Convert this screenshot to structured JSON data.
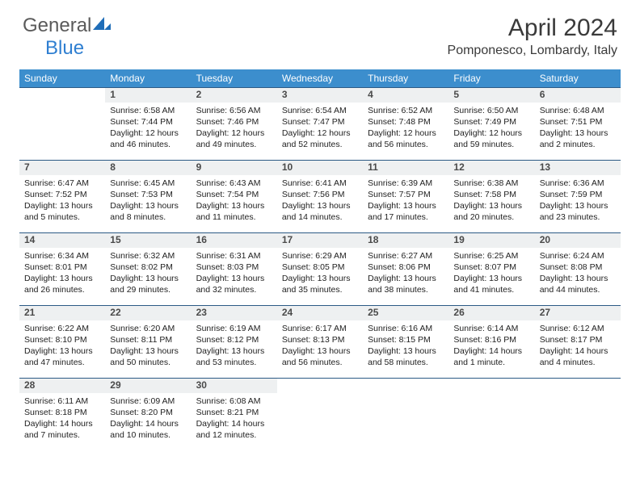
{
  "brand": {
    "part1": "General",
    "part2": "Blue"
  },
  "title": "April 2024",
  "location": "Pomponesco, Lombardy, Italy",
  "colors": {
    "header_bg": "#3c8ecd",
    "header_rule": "#2c5a85",
    "day_bg": "#eef0f1",
    "brand_blue": "#2f7fd1",
    "text": "#212121"
  },
  "weekdays": [
    "Sunday",
    "Monday",
    "Tuesday",
    "Wednesday",
    "Thursday",
    "Friday",
    "Saturday"
  ],
  "weeks": [
    [
      null,
      {
        "n": "1",
        "sr": "6:58 AM",
        "ss": "7:44 PM",
        "dl": "12 hours and 46 minutes."
      },
      {
        "n": "2",
        "sr": "6:56 AM",
        "ss": "7:46 PM",
        "dl": "12 hours and 49 minutes."
      },
      {
        "n": "3",
        "sr": "6:54 AM",
        "ss": "7:47 PM",
        "dl": "12 hours and 52 minutes."
      },
      {
        "n": "4",
        "sr": "6:52 AM",
        "ss": "7:48 PM",
        "dl": "12 hours and 56 minutes."
      },
      {
        "n": "5",
        "sr": "6:50 AM",
        "ss": "7:49 PM",
        "dl": "12 hours and 59 minutes."
      },
      {
        "n": "6",
        "sr": "6:48 AM",
        "ss": "7:51 PM",
        "dl": "13 hours and 2 minutes."
      }
    ],
    [
      {
        "n": "7",
        "sr": "6:47 AM",
        "ss": "7:52 PM",
        "dl": "13 hours and 5 minutes."
      },
      {
        "n": "8",
        "sr": "6:45 AM",
        "ss": "7:53 PM",
        "dl": "13 hours and 8 minutes."
      },
      {
        "n": "9",
        "sr": "6:43 AM",
        "ss": "7:54 PM",
        "dl": "13 hours and 11 minutes."
      },
      {
        "n": "10",
        "sr": "6:41 AM",
        "ss": "7:56 PM",
        "dl": "13 hours and 14 minutes."
      },
      {
        "n": "11",
        "sr": "6:39 AM",
        "ss": "7:57 PM",
        "dl": "13 hours and 17 minutes."
      },
      {
        "n": "12",
        "sr": "6:38 AM",
        "ss": "7:58 PM",
        "dl": "13 hours and 20 minutes."
      },
      {
        "n": "13",
        "sr": "6:36 AM",
        "ss": "7:59 PM",
        "dl": "13 hours and 23 minutes."
      }
    ],
    [
      {
        "n": "14",
        "sr": "6:34 AM",
        "ss": "8:01 PM",
        "dl": "13 hours and 26 minutes."
      },
      {
        "n": "15",
        "sr": "6:32 AM",
        "ss": "8:02 PM",
        "dl": "13 hours and 29 minutes."
      },
      {
        "n": "16",
        "sr": "6:31 AM",
        "ss": "8:03 PM",
        "dl": "13 hours and 32 minutes."
      },
      {
        "n": "17",
        "sr": "6:29 AM",
        "ss": "8:05 PM",
        "dl": "13 hours and 35 minutes."
      },
      {
        "n": "18",
        "sr": "6:27 AM",
        "ss": "8:06 PM",
        "dl": "13 hours and 38 minutes."
      },
      {
        "n": "19",
        "sr": "6:25 AM",
        "ss": "8:07 PM",
        "dl": "13 hours and 41 minutes."
      },
      {
        "n": "20",
        "sr": "6:24 AM",
        "ss": "8:08 PM",
        "dl": "13 hours and 44 minutes."
      }
    ],
    [
      {
        "n": "21",
        "sr": "6:22 AM",
        "ss": "8:10 PM",
        "dl": "13 hours and 47 minutes."
      },
      {
        "n": "22",
        "sr": "6:20 AM",
        "ss": "8:11 PM",
        "dl": "13 hours and 50 minutes."
      },
      {
        "n": "23",
        "sr": "6:19 AM",
        "ss": "8:12 PM",
        "dl": "13 hours and 53 minutes."
      },
      {
        "n": "24",
        "sr": "6:17 AM",
        "ss": "8:13 PM",
        "dl": "13 hours and 56 minutes."
      },
      {
        "n": "25",
        "sr": "6:16 AM",
        "ss": "8:15 PM",
        "dl": "13 hours and 58 minutes."
      },
      {
        "n": "26",
        "sr": "6:14 AM",
        "ss": "8:16 PM",
        "dl": "14 hours and 1 minute."
      },
      {
        "n": "27",
        "sr": "6:12 AM",
        "ss": "8:17 PM",
        "dl": "14 hours and 4 minutes."
      }
    ],
    [
      {
        "n": "28",
        "sr": "6:11 AM",
        "ss": "8:18 PM",
        "dl": "14 hours and 7 minutes."
      },
      {
        "n": "29",
        "sr": "6:09 AM",
        "ss": "8:20 PM",
        "dl": "14 hours and 10 minutes."
      },
      {
        "n": "30",
        "sr": "6:08 AM",
        "ss": "8:21 PM",
        "dl": "14 hours and 12 minutes."
      },
      null,
      null,
      null,
      null
    ]
  ],
  "labels": {
    "sunrise": "Sunrise:",
    "sunset": "Sunset:",
    "daylight": "Daylight:"
  }
}
